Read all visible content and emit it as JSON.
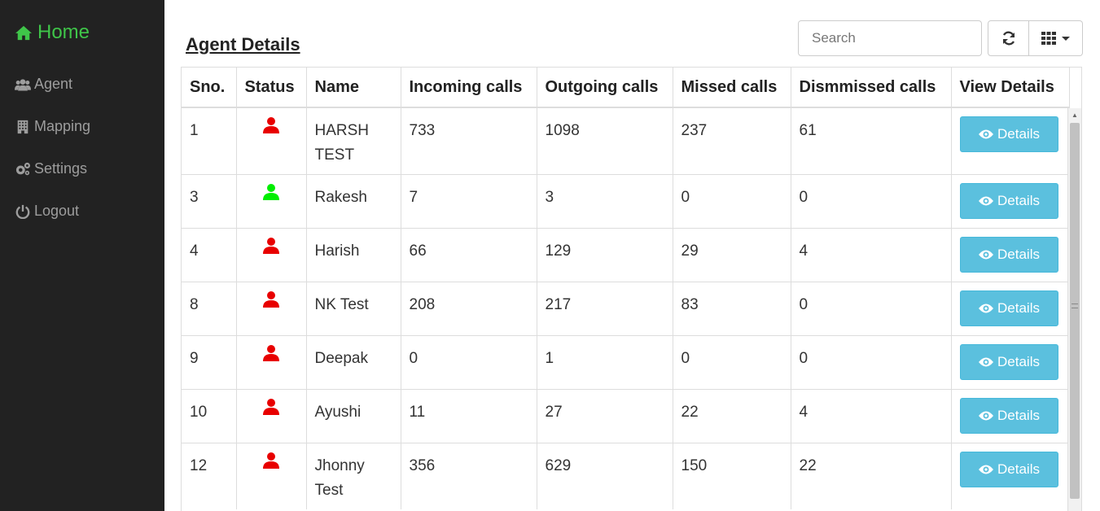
{
  "sidebar": {
    "home": {
      "label": "Home",
      "icon": "home-icon"
    },
    "items": [
      {
        "label": "Agent",
        "icon": "users-icon"
      },
      {
        "label": "Mapping",
        "icon": "building-icon"
      },
      {
        "label": "Settings",
        "icon": "gears-icon"
      },
      {
        "label": "Logout",
        "icon": "power-icon"
      }
    ]
  },
  "main": {
    "title": "Agent Details",
    "search": {
      "placeholder": "Search",
      "value": ""
    }
  },
  "table": {
    "headers": [
      "Sno.",
      "Status",
      "Name",
      "Incoming calls",
      "Outgoing calls",
      "Missed calls",
      "Dismmissed calls",
      "View Details"
    ],
    "button_label": "Details",
    "rows": [
      {
        "sno": "1",
        "status": "offline",
        "name": "HARSH TEST",
        "incoming": "733",
        "outgoing": "1098",
        "missed": "237",
        "dismissed": "61"
      },
      {
        "sno": "3",
        "status": "online",
        "name": "Rakesh",
        "incoming": "7",
        "outgoing": "3",
        "missed": "0",
        "dismissed": "0"
      },
      {
        "sno": "4",
        "status": "offline",
        "name": "Harish",
        "incoming": "66",
        "outgoing": "129",
        "missed": "29",
        "dismissed": "4"
      },
      {
        "sno": "8",
        "status": "offline",
        "name": "NK Test",
        "incoming": "208",
        "outgoing": "217",
        "missed": "83",
        "dismissed": "0"
      },
      {
        "sno": "9",
        "status": "offline",
        "name": "Deepak",
        "incoming": "0",
        "outgoing": "1",
        "missed": "0",
        "dismissed": "0"
      },
      {
        "sno": "10",
        "status": "offline",
        "name": "Ayushi",
        "incoming": "11",
        "outgoing": "27",
        "missed": "22",
        "dismissed": "4"
      },
      {
        "sno": "12",
        "status": "offline",
        "name": "Jhonny Test",
        "incoming": "356",
        "outgoing": "629",
        "missed": "150",
        "dismissed": "22"
      }
    ]
  },
  "colors": {
    "online": "#00ee00",
    "offline": "#e80000",
    "accent": "#5bc0de",
    "home": "#3fc549"
  }
}
